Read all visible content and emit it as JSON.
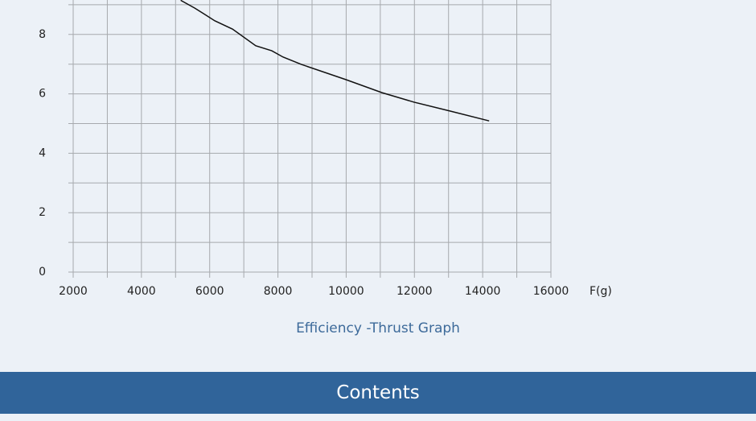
{
  "chart_data": {
    "type": "line",
    "title": "Efficiency -Thrust Graph",
    "x_label": "F(g)",
    "x": [
      5150,
      5560,
      6150,
      6670,
      7350,
      7820,
      8150,
      8690,
      9990,
      11050,
      11990,
      13050,
      14190
    ],
    "series": [
      {
        "name": null,
        "color": "#111111",
        "values": [
          9.15,
          8.89,
          8.46,
          8.18,
          7.62,
          7.45,
          7.24,
          6.99,
          6.48,
          6.04,
          5.72,
          5.42,
          5.09
        ]
      }
    ],
    "xlim": [
      2000,
      16000
    ],
    "xticks": [
      2000,
      4000,
      6000,
      8000,
      10000,
      12000,
      14000,
      16000
    ],
    "ylim": [
      0,
      10
    ],
    "yticks": [
      0,
      2,
      4,
      6,
      8
    ],
    "grid": true
  },
  "section_header": {
    "label": "Contents"
  }
}
